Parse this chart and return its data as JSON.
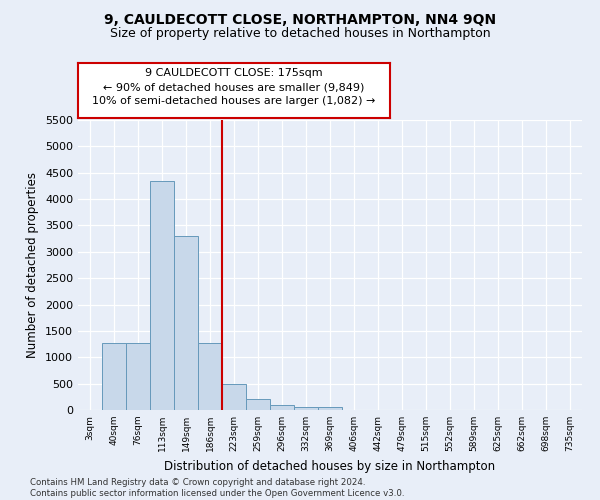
{
  "title": "9, CAULDECOTT CLOSE, NORTHAMPTON, NN4 9QN",
  "subtitle": "Size of property relative to detached houses in Northampton",
  "xlabel": "Distribution of detached houses by size in Northampton",
  "ylabel": "Number of detached properties",
  "bar_color": "#c8d8ea",
  "bar_edge_color": "#6699bb",
  "background_color": "#e8eef8",
  "grid_color": "#ffffff",
  "categories": [
    "3sqm",
    "40sqm",
    "76sqm",
    "113sqm",
    "149sqm",
    "186sqm",
    "223sqm",
    "259sqm",
    "296sqm",
    "332sqm",
    "369sqm",
    "406sqm",
    "442sqm",
    "479sqm",
    "515sqm",
    "552sqm",
    "589sqm",
    "625sqm",
    "662sqm",
    "698sqm",
    "735sqm"
  ],
  "values": [
    0,
    1270,
    1270,
    4350,
    3300,
    1270,
    490,
    215,
    90,
    65,
    55,
    0,
    0,
    0,
    0,
    0,
    0,
    0,
    0,
    0,
    0
  ],
  "ylim": [
    0,
    5500
  ],
  "yticks": [
    0,
    500,
    1000,
    1500,
    2000,
    2500,
    3000,
    3500,
    4000,
    4500,
    5000,
    5500
  ],
  "vline_x": 5.5,
  "vline_color": "#cc0000",
  "annotation_text": "9 CAULDECOTT CLOSE: 175sqm\n← 90% of detached houses are smaller (9,849)\n10% of semi-detached houses are larger (1,082) →",
  "annotation_box_color": "#ffffff",
  "annotation_box_edge": "#cc0000",
  "footnote": "Contains HM Land Registry data © Crown copyright and database right 2024.\nContains public sector information licensed under the Open Government Licence v3.0.",
  "title_fontsize": 10,
  "subtitle_fontsize": 9,
  "xlabel_fontsize": 8.5,
  "ylabel_fontsize": 8.5,
  "annot_fontsize": 8
}
